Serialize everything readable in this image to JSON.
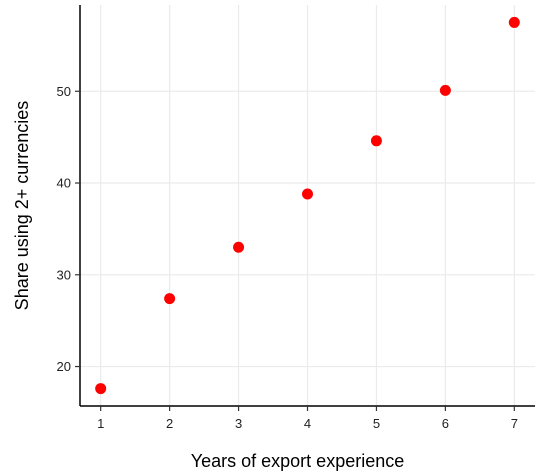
{
  "chart_data": {
    "type": "scatter",
    "title": "",
    "xlabel": "Years of export experience",
    "ylabel": "Share using 2+ currencies",
    "x": [
      1,
      2,
      3,
      4,
      5,
      6,
      7
    ],
    "y": [
      17.6,
      27.4,
      33.0,
      38.8,
      44.6,
      50.1,
      57.5
    ],
    "xlim": [
      0.7,
      7.3
    ],
    "ylim": [
      15.7,
      59.4
    ],
    "xticks": [
      1,
      2,
      3,
      4,
      5,
      6,
      7
    ],
    "yticks": [
      20,
      30,
      40,
      50
    ],
    "grid": true,
    "colors": {
      "point": "#ff0000",
      "grid": "#ebebeb",
      "axis": "#000000"
    }
  }
}
